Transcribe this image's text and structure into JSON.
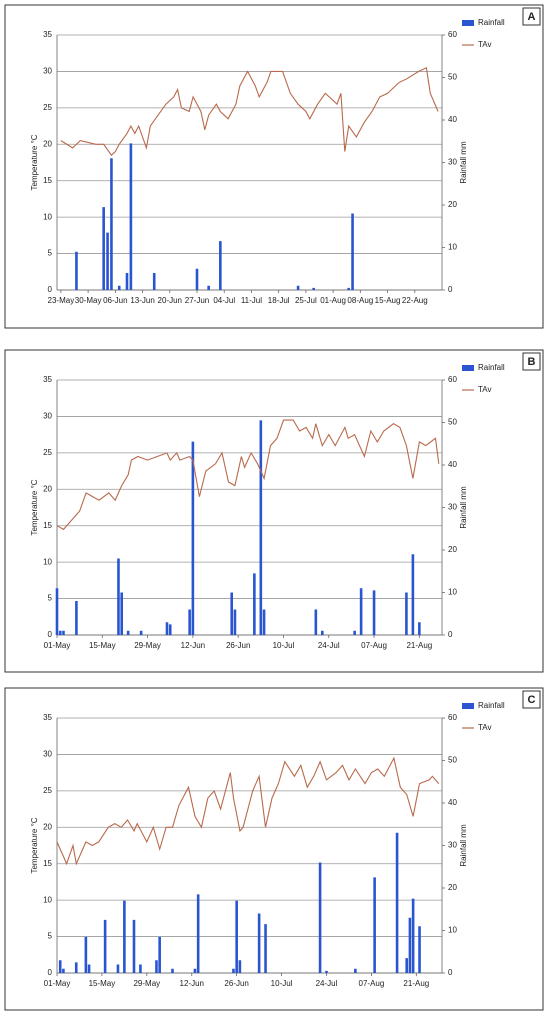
{
  "chart_data": [
    {
      "type": "combo",
      "label": "A",
      "ylabel": "Temperature °C",
      "y2label": "Rainfall mm",
      "grid": true,
      "xlim": [
        -1,
        98
      ],
      "ylim": [
        0,
        35
      ],
      "yticks": [
        0,
        5,
        10,
        15,
        20,
        25,
        30,
        35
      ],
      "y2lim": [
        0,
        60
      ],
      "y2ticks": [
        0,
        10,
        20,
        30,
        40,
        50,
        60
      ],
      "xticks": [
        {
          "value": 0,
          "label": "23-May"
        },
        {
          "value": 7,
          "label": "30-May"
        },
        {
          "value": 14,
          "label": "06-Jun"
        },
        {
          "value": 21,
          "label": "13-Jun"
        },
        {
          "value": 28,
          "label": "20-Jun"
        },
        {
          "value": 35,
          "label": "27-Jun"
        },
        {
          "value": 42,
          "label": "04-Jul"
        },
        {
          "value": 49,
          "label": "11-Jul"
        },
        {
          "value": 56,
          "label": "18-Jul"
        },
        {
          "value": 63,
          "label": "25-Jul"
        },
        {
          "value": 70,
          "label": "01-Aug"
        },
        {
          "value": 77,
          "label": "08-Aug"
        },
        {
          "value": 84,
          "label": "15-Aug"
        },
        {
          "value": 91,
          "label": "22-Aug"
        }
      ],
      "series": [
        {
          "name": "Rainfall",
          "type": "bar",
          "axis": "y2",
          "color": "#2a55d0",
          "x": [
            4,
            11,
            12,
            13,
            15,
            17,
            18,
            24,
            35,
            38,
            41,
            61,
            65,
            74,
            75
          ],
          "values": [
            9,
            19.5,
            13.5,
            31,
            1,
            4,
            34.5,
            4,
            5,
            1,
            11.5,
            1,
            0.5,
            0.5,
            18
          ]
        },
        {
          "name": "TAv",
          "type": "line",
          "color": "#b86a4c",
          "x": [
            0,
            3,
            5,
            9,
            11,
            13,
            14,
            15,
            17,
            18,
            19,
            20,
            22,
            23,
            25,
            27,
            29,
            30,
            31,
            33,
            34,
            36,
            37,
            38,
            40,
            41,
            43,
            45,
            46,
            48,
            50,
            51,
            53,
            54,
            57,
            59,
            61,
            63,
            64,
            66,
            68,
            69,
            71,
            72,
            73,
            74,
            76,
            78,
            80,
            82,
            84,
            87,
            89,
            92,
            94,
            95,
            97
          ],
          "values": [
            20.5,
            19.5,
            20.5,
            20,
            20,
            18.5,
            19,
            20,
            21.5,
            22.5,
            21.5,
            22.5,
            19.5,
            22.5,
            24,
            25.5,
            26.5,
            27.5,
            25,
            24.5,
            26.5,
            24.5,
            22,
            24,
            25.5,
            24.5,
            23.5,
            25.5,
            28,
            30,
            28,
            26.5,
            28.5,
            30,
            30,
            27,
            25.5,
            24.5,
            23.5,
            25.5,
            27,
            26.5,
            25.5,
            27,
            19,
            22.5,
            21,
            23,
            24.5,
            26.5,
            27,
            28.5,
            29,
            30,
            30.5,
            27,
            24.5
          ]
        }
      ]
    },
    {
      "type": "combo",
      "label": "B",
      "ylabel": "Temperature °C",
      "y2label": "Rainfall mm",
      "grid": true,
      "xlim": [
        0,
        119
      ],
      "ylim": [
        0,
        35
      ],
      "yticks": [
        0,
        5,
        10,
        15,
        20,
        25,
        30,
        35
      ],
      "y2lim": [
        0,
        60
      ],
      "y2ticks": [
        0,
        10,
        20,
        30,
        40,
        50,
        60
      ],
      "xticks": [
        {
          "value": 0,
          "label": "01-May"
        },
        {
          "value": 14,
          "label": "15-May"
        },
        {
          "value": 28,
          "label": "29-May"
        },
        {
          "value": 42,
          "label": "12-Jun"
        },
        {
          "value": 56,
          "label": "26-Jun"
        },
        {
          "value": 70,
          "label": "10-Jul"
        },
        {
          "value": 84,
          "label": "24-Jul"
        },
        {
          "value": 98,
          "label": "07-Aug"
        },
        {
          "value": 112,
          "label": "21-Aug"
        }
      ],
      "series": [
        {
          "name": "Rainfall",
          "type": "bar",
          "axis": "y2",
          "color": "#2a55d0",
          "x": [
            0,
            1,
            2,
            6,
            19,
            20,
            22,
            26,
            34,
            35,
            41,
            42,
            54,
            55,
            61,
            63,
            64,
            80,
            82,
            92,
            94,
            98,
            108,
            110,
            112
          ],
          "values": [
            11,
            1,
            1,
            8,
            18,
            10,
            1,
            1,
            3,
            2.5,
            6,
            45.5,
            10,
            6,
            14.5,
            50.5,
            6,
            6,
            1,
            1,
            11,
            10.5,
            10,
            19,
            3
          ]
        },
        {
          "name": "TAv",
          "type": "line",
          "color": "#b86a4c",
          "x": [
            0,
            2,
            4,
            7,
            9,
            11,
            13,
            16,
            18,
            20,
            22,
            23,
            25,
            28,
            31,
            34,
            35,
            37,
            38,
            41,
            42,
            44,
            46,
            49,
            51,
            53,
            55,
            57,
            58,
            60,
            62,
            64,
            66,
            68,
            70,
            73,
            75,
            77,
            79,
            80,
            82,
            84,
            86,
            89,
            90,
            92,
            95,
            97,
            99,
            101,
            104,
            106,
            108,
            110,
            112,
            114,
            117,
            118
          ],
          "values": [
            15,
            14.5,
            15.5,
            17,
            19.5,
            19,
            18.5,
            19.5,
            18.5,
            20.5,
            22,
            24,
            24.5,
            24,
            24.5,
            25,
            24,
            25,
            24,
            24.5,
            24,
            19,
            22.5,
            23.5,
            25,
            21,
            20.5,
            24.5,
            23,
            25,
            23.5,
            21.5,
            26,
            27,
            29.5,
            29.5,
            28,
            28.5,
            27,
            29,
            26,
            27.5,
            26,
            28.5,
            27,
            27.5,
            24.5,
            28,
            26.5,
            28,
            29,
            28.5,
            26,
            21.5,
            26.5,
            26,
            27,
            23.5
          ]
        }
      ]
    },
    {
      "type": "combo",
      "label": "C",
      "ylabel": "Temperature °C",
      "y2label": "Rainfall mm",
      "grid": true,
      "xlim": [
        0,
        120
      ],
      "ylim": [
        0,
        35
      ],
      "yticks": [
        0,
        5,
        10,
        15,
        20,
        25,
        30,
        35
      ],
      "y2lim": [
        0,
        60
      ],
      "y2ticks": [
        0,
        10,
        20,
        30,
        40,
        50,
        60
      ],
      "xticks": [
        {
          "value": 0,
          "label": "01-May"
        },
        {
          "value": 14,
          "label": "15-May"
        },
        {
          "value": 28,
          "label": "29-May"
        },
        {
          "value": 42,
          "label": "12-Jun"
        },
        {
          "value": 56,
          "label": "26-Jun"
        },
        {
          "value": 70,
          "label": "10-Jul"
        },
        {
          "value": 84,
          "label": "24-Jul"
        },
        {
          "value": 98,
          "label": "07-Aug"
        },
        {
          "value": 112,
          "label": "21-Aug"
        }
      ],
      "series": [
        {
          "name": "Rainfall",
          "type": "bar",
          "axis": "y2",
          "color": "#2a55d0",
          "x": [
            1,
            2,
            6,
            9,
            10,
            15,
            19,
            21,
            24,
            26,
            31,
            32,
            36,
            43,
            44,
            55,
            56,
            57,
            63,
            65,
            82,
            84,
            93,
            99,
            106,
            109,
            110,
            111,
            113
          ],
          "values": [
            3,
            1,
            2.5,
            8.5,
            2,
            12.5,
            2,
            17,
            12.5,
            2,
            3,
            8.5,
            1,
            1,
            18.5,
            1,
            17,
            3,
            14,
            11.5,
            26,
            0.5,
            1,
            22.5,
            33,
            3.5,
            13,
            17.5,
            11
          ]
        },
        {
          "name": "TAv",
          "type": "line",
          "color": "#b86a4c",
          "x": [
            0,
            2,
            3,
            5,
            6,
            9,
            11,
            13,
            16,
            18,
            20,
            22,
            24,
            25,
            28,
            30,
            32,
            34,
            36,
            38,
            41,
            43,
            45,
            47,
            49,
            51,
            54,
            55,
            57,
            58,
            61,
            63,
            65,
            67,
            69,
            71,
            74,
            76,
            78,
            80,
            82,
            84,
            87,
            89,
            91,
            93,
            96,
            98,
            100,
            102,
            105,
            107,
            109,
            111,
            113,
            116,
            117,
            119
          ],
          "values": [
            18,
            16,
            15,
            17.5,
            15,
            18,
            17.5,
            18,
            20,
            20.5,
            20,
            21,
            19.5,
            20.5,
            18,
            20,
            17,
            20,
            20,
            23,
            25.5,
            21.5,
            20,
            24,
            25,
            22.5,
            27.5,
            24,
            19.5,
            20,
            25,
            27,
            20,
            24,
            26,
            29,
            27,
            28.5,
            25.5,
            27,
            29,
            26.5,
            27.5,
            28.5,
            26.5,
            28,
            26,
            27.5,
            28,
            27,
            29.5,
            25.5,
            24.5,
            21.5,
            26,
            26.5,
            27,
            26
          ]
        }
      ]
    }
  ]
}
